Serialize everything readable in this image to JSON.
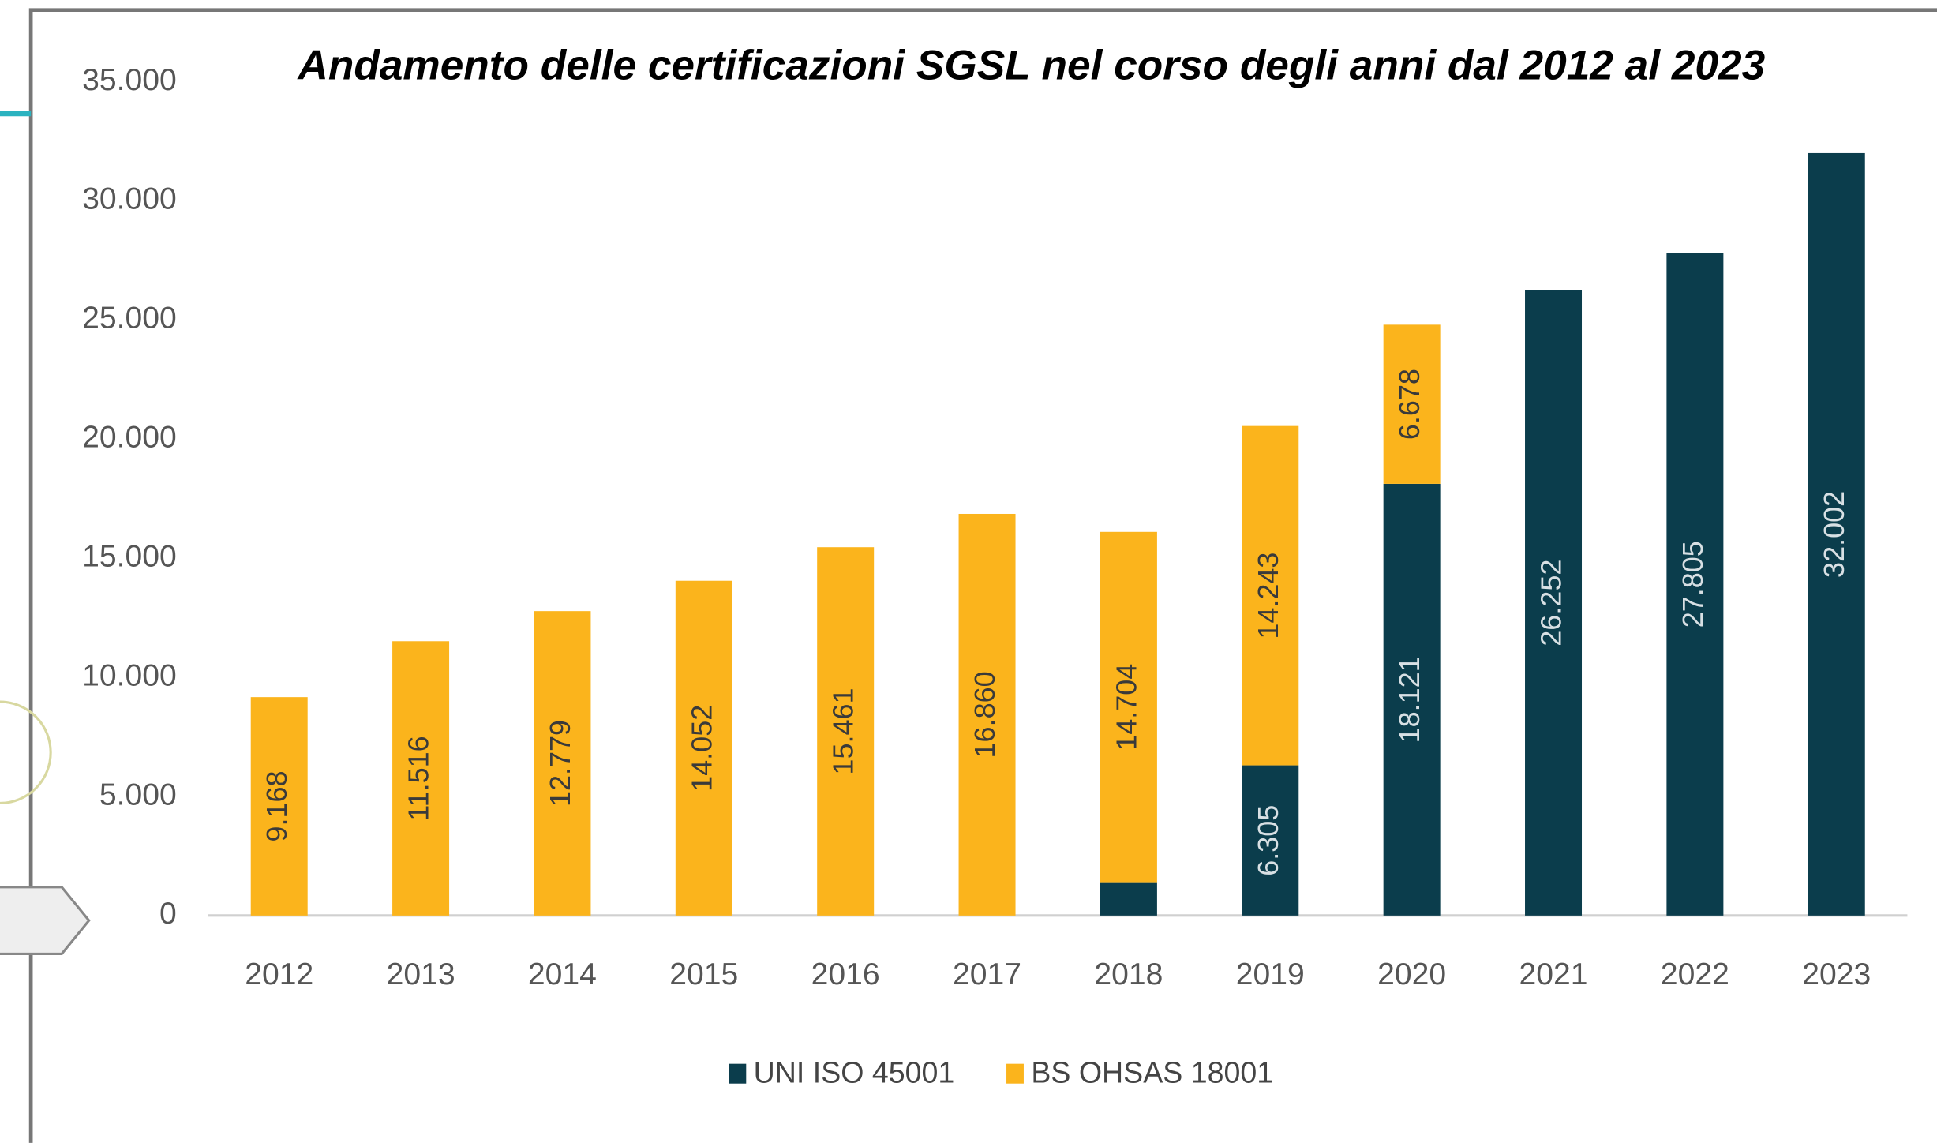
{
  "chart_data": {
    "type": "stacked-bar",
    "title": "Andamento delle certificazioni SGSL  nel corso degli anni dal 2012 al 2023",
    "categories": [
      "2012",
      "2013",
      "2014",
      "2015",
      "2016",
      "2017",
      "2018",
      "2019",
      "2020",
      "2021",
      "2022",
      "2023"
    ],
    "series": [
      {
        "name": "UNI ISO 45001",
        "color": "#0b3d4c",
        "values": [
          null,
          null,
          null,
          null,
          null,
          null,
          1400,
          6305,
          18121,
          26252,
          27805,
          32002
        ],
        "value_labels": [
          null,
          null,
          null,
          null,
          null,
          null,
          null,
          "6.305",
          "18.121",
          "26.252",
          "27.805",
          "32.002"
        ]
      },
      {
        "name": "BS OHSAS 18001",
        "color": "#fbb41c",
        "values": [
          9168,
          11516,
          12779,
          14052,
          15461,
          16860,
          14704,
          14243,
          6678,
          null,
          null,
          null
        ],
        "value_labels": [
          "9.168",
          "11.516",
          "12.779",
          "14.052",
          "15.461",
          "16.860",
          "14.704",
          "14.243",
          "6.678",
          null,
          null,
          null
        ]
      }
    ],
    "ylim": [
      0,
      35000
    ],
    "yticks": [
      0,
      {
        "value": 5000,
        "label": "5.000"
      },
      {
        "value": 10000,
        "label": "10.000"
      },
      {
        "value": 15000,
        "label": "15.000"
      },
      {
        "value": 20000,
        "label": "20.000"
      },
      {
        "value": 25000,
        "label": "25.000"
      },
      {
        "value": 30000,
        "label": "30.000"
      },
      {
        "value": 35000,
        "label": "35.000"
      }
    ],
    "grid": false,
    "legend": "bottom"
  }
}
